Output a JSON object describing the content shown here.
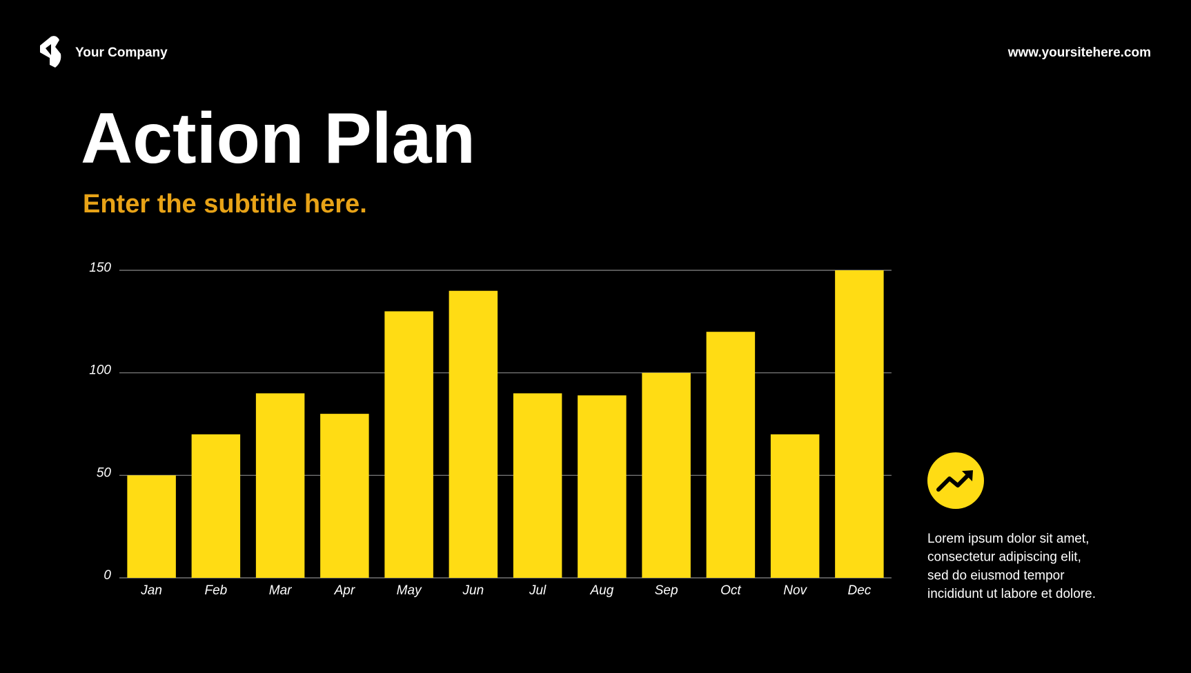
{
  "header": {
    "company": "Your Company",
    "website": "www.yoursitehere.com"
  },
  "title": "Action Plan",
  "subtitle": "Enter the subtitle here.",
  "chart_data": {
    "type": "bar",
    "categories": [
      "Jan",
      "Feb",
      "Mar",
      "Apr",
      "May",
      "Jun",
      "Jul",
      "Aug",
      "Sep",
      "Oct",
      "Nov",
      "Dec"
    ],
    "values": [
      50,
      70,
      90,
      80,
      130,
      140,
      90,
      89,
      100,
      120,
      70,
      150
    ],
    "color": "#ffdc14",
    "ylim": [
      0,
      150
    ],
    "yticks": [
      0,
      50,
      100,
      150
    ],
    "grid": true
  },
  "note": {
    "lines": [
      "Lorem ipsum dolor sit amet,",
      "consectetur adipiscing elit,",
      "sed do eiusmod tempor",
      "incididunt ut labore et dolore."
    ]
  }
}
